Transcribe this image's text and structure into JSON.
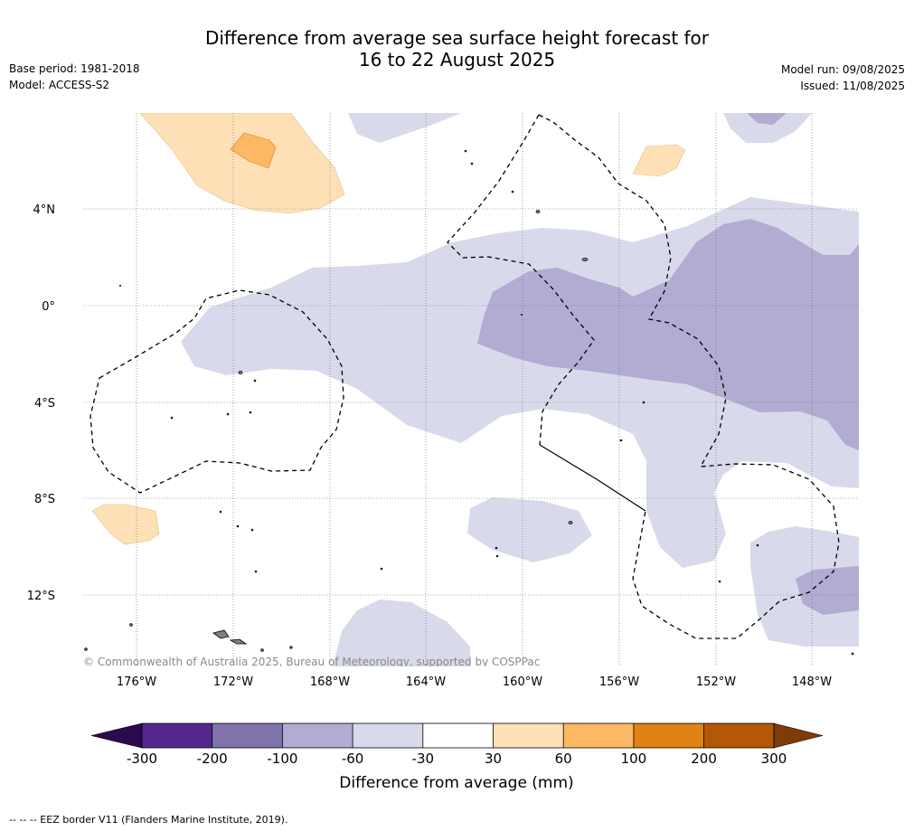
{
  "title_line1": "Difference from average sea surface height forecast for",
  "title_line2": "16 to 22 August 2025",
  "base_period": "Base period: 1981-2018",
  "model": "Model: ACCESS-S2",
  "model_run": "Model run: 09/08/2025",
  "issued": "Issued: 11/08/2025",
  "lat_labels": [
    "4°N",
    "0°",
    "4°S",
    "8°S",
    "12°S"
  ],
  "lon_labels": [
    "176°W",
    "172°W",
    "168°W",
    "164°W",
    "160°W",
    "156°W",
    "152°W",
    "148°W"
  ],
  "copyright": "© Commonwealth of Australia 2025, Bureau of Meteorology, supported by COSPPac",
  "colorbar": {
    "ticks": [
      "-300",
      "-200",
      "-100",
      "-60",
      "-30",
      "30",
      "60",
      "100",
      "200",
      "300"
    ],
    "colors": [
      "#2d0a4e",
      "#54278f",
      "#8073ac",
      "#b2abd2",
      "#d8daeb",
      "#ffffff",
      "#fee0b6",
      "#fdb863",
      "#e08214",
      "#b35806",
      "#7f3b08"
    ],
    "title": "Difference from average (mm)"
  },
  "footer": "--  --  -- EEZ border V11 (Flanders Marine Institute, 2019)."
}
